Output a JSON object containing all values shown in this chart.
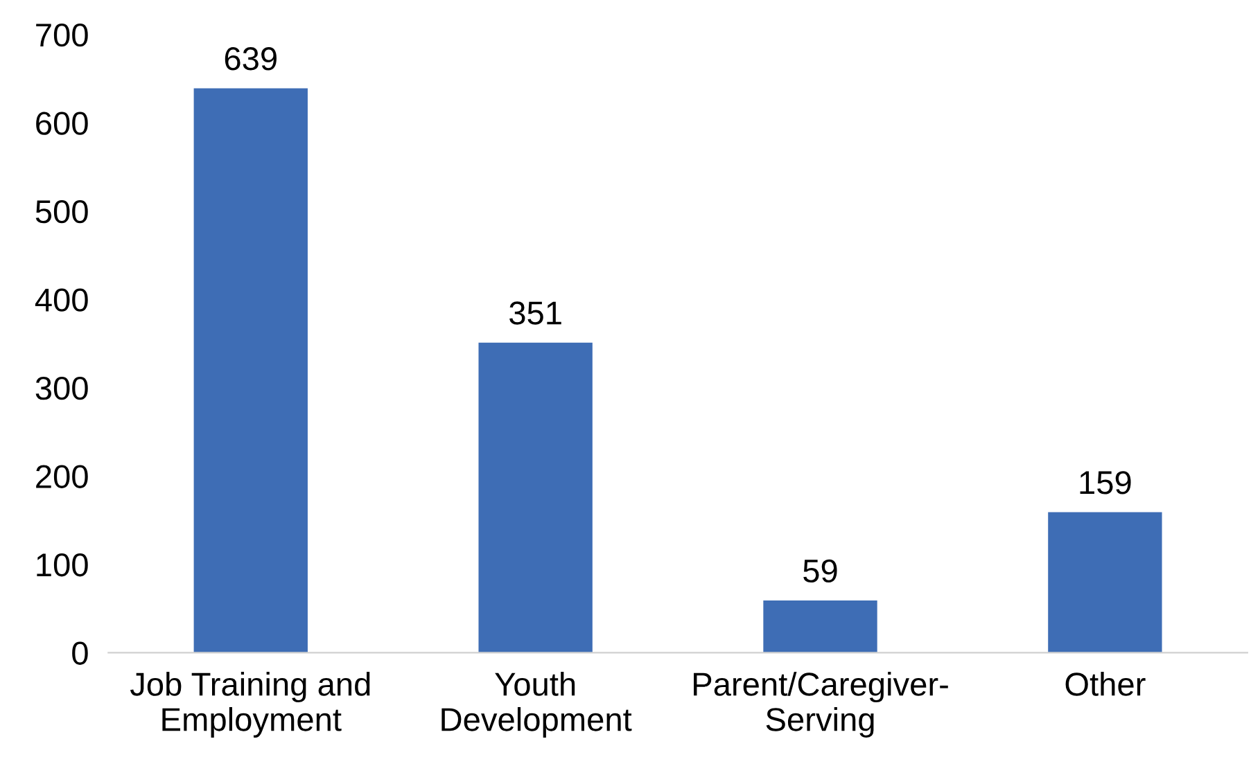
{
  "chart_data": {
    "type": "bar",
    "categories": [
      "Job Training and\nEmployment",
      "Youth\nDevelopment",
      "Parent/Caregiver-\nServing",
      "Other"
    ],
    "values": [
      639,
      351,
      59,
      159
    ],
    "color": "#3e6db5",
    "ylim": [
      0,
      700
    ],
    "yticks": [
      0,
      100,
      200,
      300,
      400,
      500,
      600,
      700
    ],
    "data_labels": true,
    "grid": false,
    "legend": false
  }
}
